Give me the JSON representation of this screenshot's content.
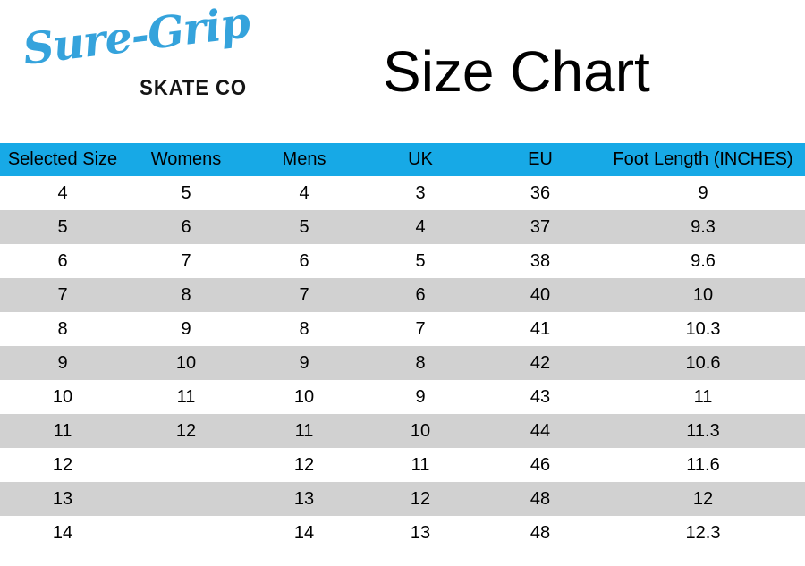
{
  "logo": {
    "brand": "Sure-Grip",
    "subtitle": "SKATE CO"
  },
  "title": "Size Chart",
  "colors": {
    "header_bg": "#17A9E6",
    "row_alt_bg": "#D1D1D1",
    "logo_blue": "#35A3DC",
    "text": "#000000"
  },
  "chart_data": {
    "type": "table",
    "title": "Size Chart",
    "columns": [
      "Selected Size",
      "Womens",
      "Mens",
      "UK",
      "EU",
      "Foot Length (INCHES)"
    ],
    "rows": [
      [
        "4",
        "5",
        "4",
        "3",
        "36",
        "9"
      ],
      [
        "5",
        "6",
        "5",
        "4",
        "37",
        "9.3"
      ],
      [
        "6",
        "7",
        "6",
        "5",
        "38",
        "9.6"
      ],
      [
        "7",
        "8",
        "7",
        "6",
        "40",
        "10"
      ],
      [
        "8",
        "9",
        "8",
        "7",
        "41",
        "10.3"
      ],
      [
        "9",
        "10",
        "9",
        "8",
        "42",
        "10.6"
      ],
      [
        "10",
        "11",
        "10",
        "9",
        "43",
        "11"
      ],
      [
        "11",
        "12",
        "11",
        "10",
        "44",
        "11.3"
      ],
      [
        "12",
        "",
        "12",
        "11",
        "46",
        "11.6"
      ],
      [
        "13",
        "",
        "13",
        "12",
        "48",
        "12"
      ],
      [
        "14",
        "",
        "14",
        "13",
        "48",
        "12.3"
      ]
    ],
    "layout": {
      "header_fill": "#17A9E6",
      "alternating_row_fill": "#D1D1D1",
      "first_data_row_fill": "#FFFFFF",
      "grid": false
    }
  }
}
